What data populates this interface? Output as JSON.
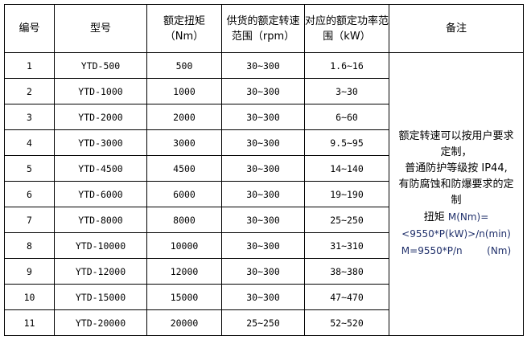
{
  "headers": [
    "编号",
    "型号",
    "额定扭矩（Nm）",
    "供货的额定转速范围（rpm）",
    "对应的额定功率范围（kW）",
    "备注"
  ],
  "rows": [
    [
      "1",
      "YTD-500",
      "500",
      "30~300",
      "1.6~16"
    ],
    [
      "2",
      "YTD-1000",
      "1000",
      "30~300",
      "3~30"
    ],
    [
      "3",
      "YTD-2000",
      "2000",
      "30~300",
      "6~60"
    ],
    [
      "4",
      "YTD-3000",
      "3000",
      "30~300",
      "9.5~95"
    ],
    [
      "5",
      "YTD-4500",
      "4500",
      "30~300",
      "14~140"
    ],
    [
      "6",
      "YTD-6000",
      "6000",
      "30~300",
      "19~190"
    ],
    [
      "7",
      "YTD-8000",
      "8000",
      "30~300",
      "25~250"
    ],
    [
      "8",
      "YTD-10000",
      "10000",
      "30~300",
      "31~310"
    ],
    [
      "9",
      "YTD-12000",
      "12000",
      "30~300",
      "38~380"
    ],
    [
      "10",
      "YTD-15000",
      "15000",
      "30~300",
      "47~470"
    ],
    [
      "11",
      "YTD-20000",
      "20000",
      "25~250",
      "52~520"
    ]
  ],
  "note": {
    "line1": "额定转速可以按用户要求定制，",
    "line2": "普通防护等级按 IP44,",
    "line3": "有防腐蚀和防爆要求的定制",
    "torque_label": "扭矩",
    "formula1": "M(Nm)=",
    "formula2": "<9550*P(kW)>/n(min)",
    "formula3": "M=9550*P/n        (Nm)"
  },
  "colors": {
    "formula": "#1f2f6a"
  }
}
